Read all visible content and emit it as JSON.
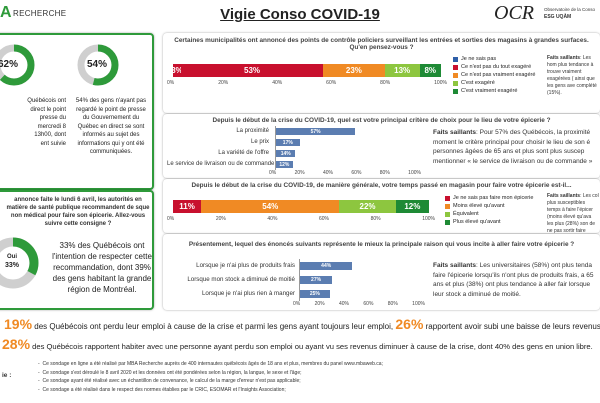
{
  "brand": {
    "logo_text": "RECHERCHE",
    "logo_letter": "A"
  },
  "header": {
    "title": "Vigie Conso COVID-19"
  },
  "ocr": {
    "logo": "OCR",
    "line1": "Observatoire de la Conso",
    "line2": "ESG UQÀM"
  },
  "left_top": {
    "donut1_value": "62%",
    "donut2_value": "54%",
    "col1_lines": [
      "Québécois ont",
      "direct le point",
      "presse du",
      "mercredi 8",
      "13h00, dont",
      "ent suivie"
    ],
    "col2_text": "54% des gens n'ayant pas regardé le point de presse du Gouvernement du Québec en direct se sont informés au sujet des informations qui y ont été communiquées."
  },
  "left_mid": {
    "question": "annonce faite le lundi 6 avril, les autorités en matière de santé publique recommandent de sque non médical pour faire son épicerie. Allez-vous suivre cette consigne ?",
    "donut_label": "Oui",
    "donut_value": "33%",
    "text": "33% des Québécois ont l'intention de respecter cette recommandation, dont 39% des gens habitant la grande région de Montréal."
  },
  "panel1": {
    "question": "Certaines municipalités ont annoncé des points de contrôle policiers surveillant les entrées et sorties des magasins à grandes surfaces. Qu'en pensez-vous ?",
    "legend": [
      "Je ne sais pas",
      "Ce n'est pas du tout exagéré",
      "Ce n'est pas vraiment exagéré",
      "C'est exagéré",
      "C'est vraiment exagéré"
    ],
    "labels": [
      "3%",
      "53%",
      "23%",
      "13%",
      "8%"
    ],
    "fs_title": "Faits saillants",
    "fs_text": ": Les hom plus tendance à trouve vraiment exagérées ( ainsi que les gens ave complété (15%).",
    "axis": [
      "0%",
      "20%",
      "40%",
      "60%",
      "80%",
      "100%"
    ]
  },
  "panel2": {
    "question": "Depuis le début de la crise du COVID-19, quel est votre principal critère de choix pour le lieu de votre épicerie ?",
    "categories": [
      "La proximité",
      "Le prix",
      "La variété de l'offre",
      "Le service de livraison ou de commande"
    ],
    "labels": [
      "57%",
      "17%",
      "14%",
      "12%"
    ],
    "axis": [
      "0%",
      "20%",
      "40%",
      "60%",
      "80%",
      "100%"
    ],
    "fs_title": "Faits saillants",
    "fs_text": ": Pour 57% des Québécois, la proximité moment le critère principal pour choisir le lieu de son é personnes âgées de 65 ans et plus sont plus suscep mentionner « le service de livraison ou de commande »"
  },
  "panel3": {
    "question": "Depuis le début de la crise du COVID-19, de manière générale, votre temps passé en magasin pour faire votre épicerie est-il...",
    "labels": [
      "11%",
      "54%",
      "22%",
      "12%"
    ],
    "legend": [
      "Je ne sais pas faire mon épicerie",
      "Moins élevé qu'avant",
      "Équivalent",
      "Plus élevé qu'avant"
    ],
    "axis": [
      "0%",
      "20%",
      "40%",
      "60%",
      "80%",
      "100%"
    ],
    "fs_title": "Faits saillants",
    "fs_text": ": Les col plus susceptibles temps à faire l'épicer (moins élevé qu'ava les plus (28%) son de ne pas sortir faire"
  },
  "panel4": {
    "question": "Présentement, lequel des énoncés suivants représente le mieux la principale raison qui vous incite à aller faire votre épicerie ?",
    "categories": [
      "Lorsque je n'ai plus de produits frais",
      "Lorsque mon stock a diminué de moitié",
      "Lorsque je n'ai plus rien à manger"
    ],
    "labels": [
      "44%",
      "27%",
      "25%"
    ],
    "axis": [
      "0%",
      "20%",
      "40%",
      "60%",
      "80%",
      "100%"
    ],
    "fs_title": "Faits saillants",
    "fs_text": ": Les universitaires (58%) ont plus tenda faire l'épicerie lorsqu'ils n'ont plus de produits frais, a 65 ans et plus (38%) ont plus tendance à aller fair lorsque leur stock a diminué de moitié."
  },
  "stats": {
    "line1_pct": "19%",
    "line1_text": "des Québécois ont perdu leur emploi à cause de la crise et parmi les gens ayant toujours leur emploi,",
    "line1_pct2": "26%",
    "line1_text2": "rapportent avoir subi une baisse de leurs revenus.",
    "line2_pct": "28%",
    "line2_text": "des Québécois rapportent habiter avec une personne ayant perdu son emploi ou ayant vu ses revenus diminuer à cause de la crise, dont 40% des gens en union libre."
  },
  "footer": {
    "label": "ie :",
    "notes": [
      "Ce sondage en ligne a été réalisé par MBA Recherche auprès de 400 internautes québécois âgés de 18 ans et plus, membres du panel www.mbaweb.ca;",
      "Ce sondage s'est déroulé le 8 avril 2020 et les données ont été pondérées selon la région, la langue, le sexe et l'âge;",
      "Ce sondage ayant été réalisé avec un échantillon de convenance, le calcul de la marge d'erreur n'est pas applicable;",
      "Ce sondage a été réalisé dans le respect des normes établies par le CRIC, ESOMAR et l'Insights Association;"
    ]
  },
  "colors": {
    "green": "#2e9a3a",
    "red": "#c8102e",
    "orange": "#f08a24",
    "light_green": "#8dc63f",
    "dark_green": "#1e8a35",
    "blue": "#2e5fa8",
    "gray_blue": "#5b7db1"
  }
}
